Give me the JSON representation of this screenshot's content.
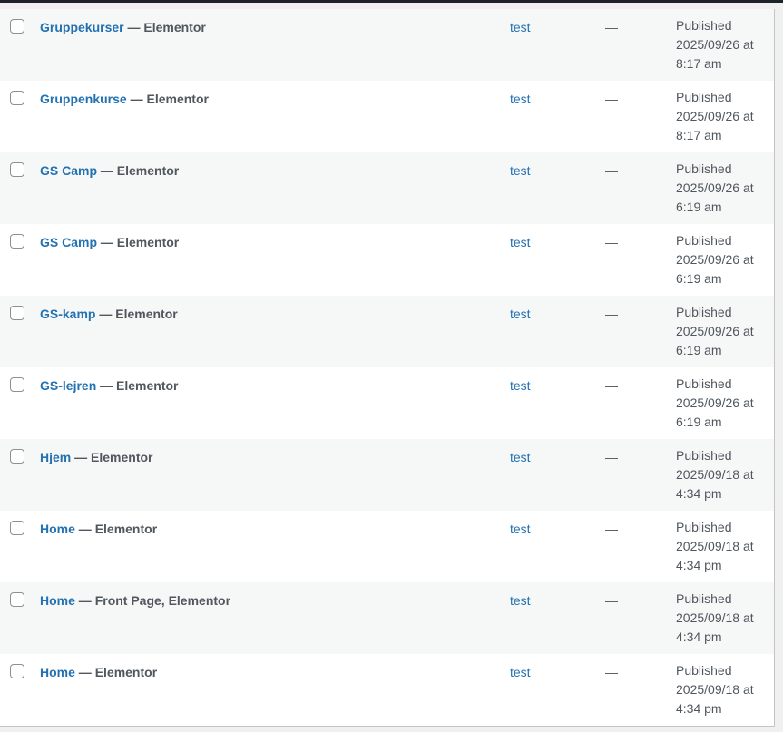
{
  "rows": [
    {
      "title": "Gruppekurser",
      "states": "Elementor",
      "author": "test",
      "comments": "—",
      "status": "Published",
      "date": "2025/09/26 at",
      "time": "8:17 am"
    },
    {
      "title": "Gruppenkurse",
      "states": "Elementor",
      "author": "test",
      "comments": "—",
      "status": "Published",
      "date": "2025/09/26 at",
      "time": "8:17 am"
    },
    {
      "title": "GS Camp",
      "states": "Elementor",
      "author": "test",
      "comments": "—",
      "status": "Published",
      "date": "2025/09/26 at",
      "time": "6:19 am"
    },
    {
      "title": "GS Camp",
      "states": "Elementor",
      "author": "test",
      "comments": "—",
      "status": "Published",
      "date": "2025/09/26 at",
      "time": "6:19 am"
    },
    {
      "title": "GS-kamp",
      "states": "Elementor",
      "author": "test",
      "comments": "—",
      "status": "Published",
      "date": "2025/09/26 at",
      "time": "6:19 am"
    },
    {
      "title": "GS-lejren",
      "states": "Elementor",
      "author": "test",
      "comments": "—",
      "status": "Published",
      "date": "2025/09/26 at",
      "time": "6:19 am"
    },
    {
      "title": "Hjem",
      "states": "Elementor",
      "author": "test",
      "comments": "—",
      "status": "Published",
      "date": "2025/09/18 at",
      "time": "4:34 pm"
    },
    {
      "title": "Home",
      "states": "Elementor",
      "author": "test",
      "comments": "—",
      "status": "Published",
      "date": "2025/09/18 at",
      "time": "4:34 pm"
    },
    {
      "title": "Home",
      "states": "Front Page, Elementor",
      "author": "test",
      "comments": "—",
      "status": "Published",
      "date": "2025/09/18 at",
      "time": "4:34 pm"
    },
    {
      "title": "Home",
      "states": "Elementor",
      "author": "test",
      "comments": "—",
      "status": "Published",
      "date": "2025/09/18 at",
      "time": "4:34 pm"
    }
  ],
  "separator": " — "
}
